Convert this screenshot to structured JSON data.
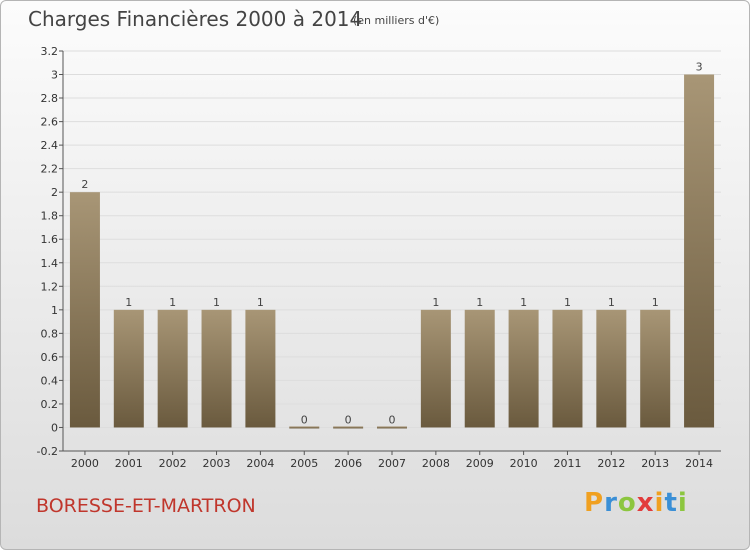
{
  "title": "Charges Financières 2000 à 2014",
  "subtitle": "(en milliers d'€)",
  "commune": "BORESSE-ET-MARTRON",
  "brand": {
    "letters": [
      "P",
      "r",
      "o",
      "x",
      "i",
      "t",
      "i"
    ],
    "colors": [
      "#f0a020",
      "#3a8fd6",
      "#8cc63f",
      "#e23b3b",
      "#f0a020",
      "#3a8fd6",
      "#8cc63f"
    ]
  },
  "colors": {
    "bar_top": "#a89676",
    "bar_bottom": "#6a5a3e",
    "grid": "#dddddd"
  },
  "chart_data": {
    "type": "bar",
    "categories": [
      "2000",
      "2001",
      "2002",
      "2003",
      "2004",
      "2005",
      "2006",
      "2007",
      "2008",
      "2009",
      "2010",
      "2011",
      "2012",
      "2013",
      "2014"
    ],
    "values": [
      2,
      1,
      1,
      1,
      1,
      0,
      0,
      0,
      1,
      1,
      1,
      1,
      1,
      1,
      3
    ],
    "data_labels": [
      "2",
      "1",
      "1",
      "1",
      "1",
      "0",
      "0",
      "0",
      "1",
      "1",
      "1",
      "1",
      "1",
      "1",
      "3"
    ],
    "ylim": [
      -0.2,
      3.2
    ],
    "yticks": [
      -0.2,
      0,
      0.2,
      0.4,
      0.6,
      0.8,
      1,
      1.2,
      1.4,
      1.6,
      1.8,
      2,
      2.2,
      2.4,
      2.6,
      2.8,
      3,
      3.2
    ],
    "ytick_labels": [
      "-0.2",
      "0",
      "0.2",
      "0.4",
      "0.6",
      "0.8",
      "1",
      "1.2",
      "1.4",
      "1.6",
      "1.8",
      "2",
      "2.2",
      "2.4",
      "2.6",
      "2.8",
      "3",
      "3.2"
    ],
    "grid": true
  }
}
